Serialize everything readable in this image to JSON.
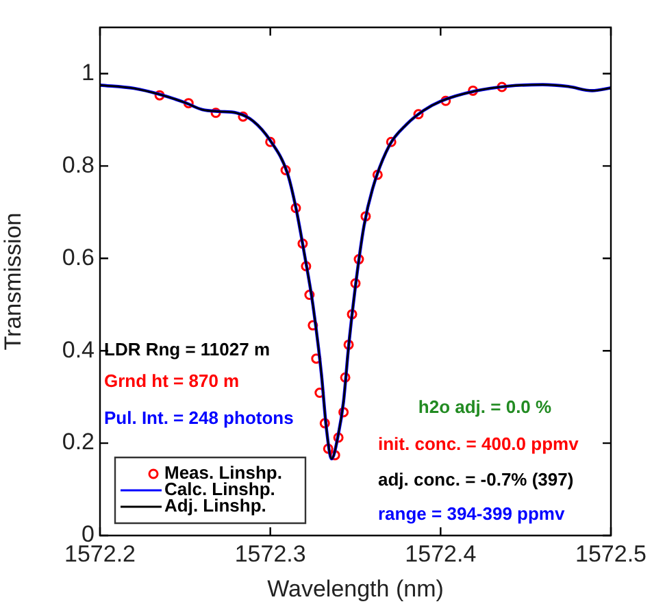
{
  "chart_data": {
    "type": "line",
    "xlabel": "Wavelength (nm)",
    "ylabel": "Transmission",
    "xlim": [
      1572.2,
      1572.5
    ],
    "xticks": [
      1572.2,
      1572.3,
      1572.4,
      1572.5
    ],
    "ylim": [
      0,
      1.1
    ],
    "yticks": [
      0,
      0.2,
      0.4,
      0.6,
      0.8,
      1
    ],
    "grid": false,
    "legend": "bottom left",
    "series": [
      {
        "name": "Meas. Linshp.",
        "type": "scatter",
        "marker": "circle",
        "color": "#ff0000",
        "x": [
          1572.235,
          1572.252,
          1572.268,
          1572.284,
          1572.3,
          1572.309,
          1572.315,
          1572.319,
          1572.321,
          1572.323,
          1572.325,
          1572.327,
          1572.329,
          1572.332,
          1572.334,
          1572.338,
          1572.34,
          1572.343,
          1572.344,
          1572.346,
          1572.348,
          1572.35,
          1572.352,
          1572.356,
          1572.363,
          1572.371,
          1572.387,
          1572.403,
          1572.419,
          1572.436
        ],
        "values": [
          0.953,
          0.936,
          0.915,
          0.907,
          0.852,
          0.791,
          0.709,
          0.632,
          0.583,
          0.521,
          0.455,
          0.383,
          0.309,
          0.243,
          0.188,
          0.174,
          0.212,
          0.267,
          0.342,
          0.413,
          0.479,
          0.546,
          0.598,
          0.691,
          0.781,
          0.852,
          0.912,
          0.941,
          0.963,
          0.971
        ]
      },
      {
        "name": "Calc. Linshp.",
        "marker": "none",
        "color": "#0000ff",
        "x": [
          1572.2,
          1572.22,
          1572.235,
          1572.25,
          1572.26,
          1572.27,
          1572.28,
          1572.29,
          1572.3,
          1572.31,
          1572.315,
          1572.32,
          1572.325,
          1572.33,
          1572.333,
          1572.336,
          1572.34,
          1572.343,
          1572.346,
          1572.35,
          1572.355,
          1572.36,
          1572.37,
          1572.38,
          1572.39,
          1572.4,
          1572.42,
          1572.44,
          1572.46,
          1572.475,
          1572.489,
          1572.5
        ],
        "values": [
          0.975,
          0.968,
          0.955,
          0.937,
          0.922,
          0.918,
          0.915,
          0.897,
          0.855,
          0.785,
          0.71,
          0.61,
          0.5,
          0.35,
          0.23,
          0.166,
          0.22,
          0.29,
          0.41,
          0.54,
          0.67,
          0.75,
          0.845,
          0.89,
          0.92,
          0.94,
          0.962,
          0.973,
          0.976,
          0.972,
          0.963,
          0.969
        ]
      },
      {
        "name": "Adj. Linshp.",
        "marker": "none",
        "color": "#000000",
        "x": [
          1572.2,
          1572.22,
          1572.235,
          1572.25,
          1572.26,
          1572.27,
          1572.28,
          1572.29,
          1572.3,
          1572.31,
          1572.315,
          1572.32,
          1572.325,
          1572.33,
          1572.333,
          1572.336,
          1572.34,
          1572.343,
          1572.346,
          1572.35,
          1572.355,
          1572.36,
          1572.37,
          1572.38,
          1572.39,
          1572.4,
          1572.42,
          1572.44,
          1572.46,
          1572.475,
          1572.489,
          1572.5
        ],
        "values": [
          0.975,
          0.968,
          0.955,
          0.937,
          0.922,
          0.918,
          0.915,
          0.897,
          0.855,
          0.785,
          0.71,
          0.61,
          0.5,
          0.35,
          0.23,
          0.166,
          0.22,
          0.29,
          0.41,
          0.54,
          0.67,
          0.75,
          0.845,
          0.89,
          0.92,
          0.94,
          0.962,
          0.973,
          0.976,
          0.972,
          0.963,
          0.969
        ]
      }
    ],
    "annotations": [
      "LDR Rng = 11027 m",
      "Grnd ht = 870 m",
      "Pul. Int. = 248 photons",
      "h2o adj. = 0.0 %",
      "init. conc. = 400.0 ppmv",
      "adj. conc. = -0.7% (397)",
      "range = 394-399 ppmv"
    ]
  }
}
